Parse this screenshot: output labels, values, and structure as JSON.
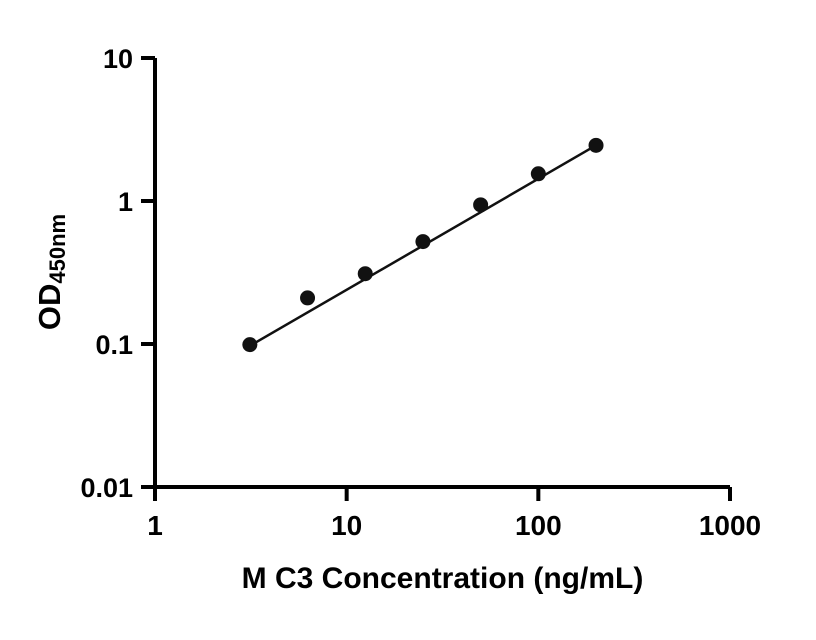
{
  "figure": {
    "background": "#ffffff"
  },
  "chart_data": {
    "type": "scatter",
    "title": "",
    "xlabel": "M C3 Concentration (ng/mL)",
    "ylabel_main": "OD",
    "ylabel_sub": "450nm",
    "x_scale": "log",
    "y_scale": "log",
    "xlim": [
      1,
      1000
    ],
    "ylim": [
      0.01,
      10
    ],
    "x_ticks": [
      "1",
      "10",
      "100",
      "1000"
    ],
    "y_ticks": [
      "0.01",
      "0.1",
      "1",
      "10"
    ],
    "grid": "off",
    "legend": "none",
    "points": [
      {
        "x": 3.125,
        "y": 0.099
      },
      {
        "x": 6.25,
        "y": 0.21
      },
      {
        "x": 12.5,
        "y": 0.31
      },
      {
        "x": 25,
        "y": 0.52
      },
      {
        "x": 50,
        "y": 0.94
      },
      {
        "x": 100,
        "y": 1.55
      },
      {
        "x": 200,
        "y": 2.45
      }
    ],
    "trendline": {
      "x1": 3.125,
      "y1": 0.097,
      "x2": 200,
      "y2": 2.45
    },
    "marker_color": "#111111",
    "line_color": "#111111",
    "axis_color": "#000000"
  }
}
